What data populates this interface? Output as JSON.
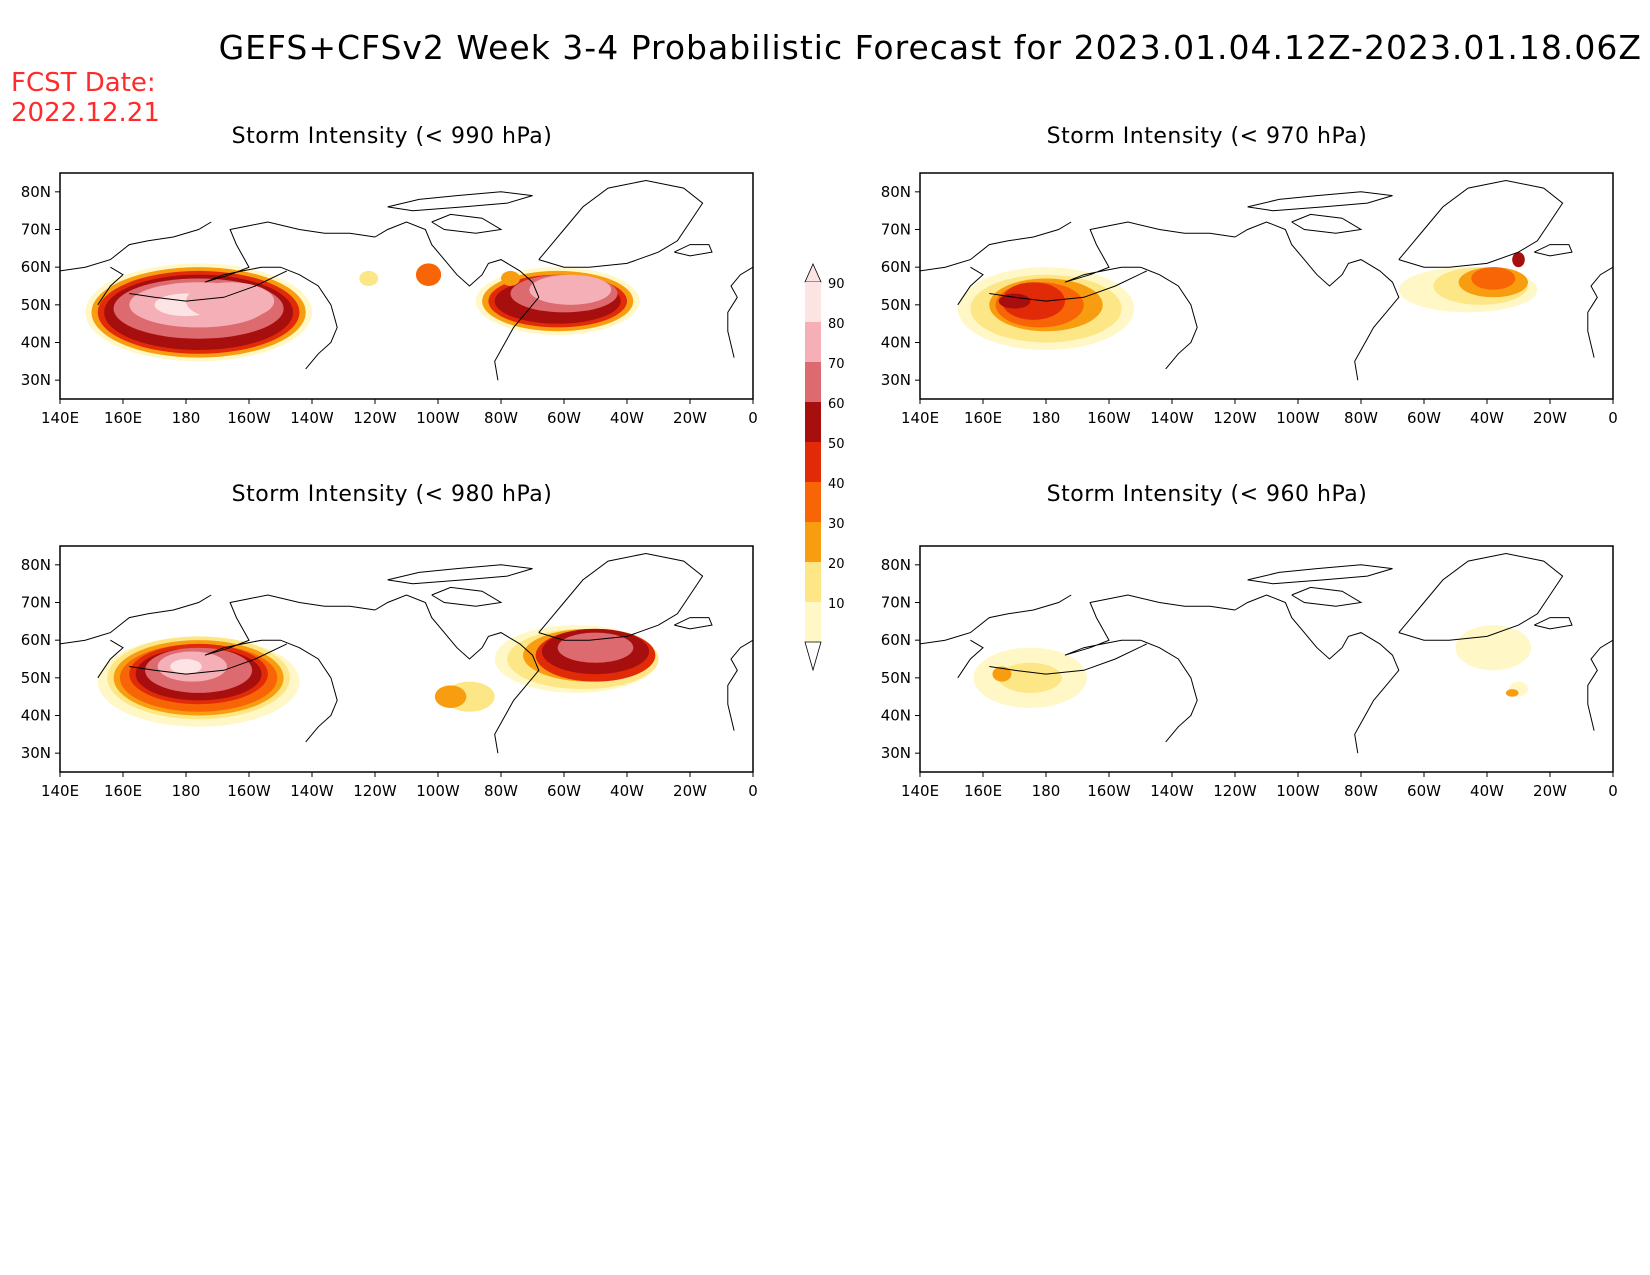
{
  "header": {
    "title": "GEFS+CFSv2 Week 3-4 Probabilistic Forecast for 2023.01.04.12Z-2023.01.18.06Z",
    "fcst_label": "FCST Date:",
    "fcst_date": "2022.12.21"
  },
  "panels": [
    {
      "id": "p990",
      "title": "Storm Intensity (< 990 hPa)"
    },
    {
      "id": "p970",
      "title": "Storm Intensity (< 970 hPa)"
    },
    {
      "id": "p980",
      "title": "Storm Intensity (< 980 hPa)"
    },
    {
      "id": "p960",
      "title": "Storm Intensity (< 960 hPa)"
    }
  ],
  "axes": {
    "lon_labels": [
      "140E",
      "160E",
      "180",
      "160W",
      "140W",
      "120W",
      "100W",
      "80W",
      "60W",
      "40W",
      "20W",
      "0"
    ],
    "lat_labels": [
      "80N",
      "70N",
      "60N",
      "50N",
      "40N",
      "30N"
    ]
  },
  "colorbar": {
    "levels": [
      "90",
      "80",
      "70",
      "60",
      "50",
      "40",
      "30",
      "20",
      "10"
    ],
    "colors": [
      "#fce4e4",
      "#f4b0b6",
      "#dd6a6e",
      "#a70e0e",
      "#e02a08",
      "#f86506",
      "#f99d10",
      "#fde685",
      "#fff8c6"
    ]
  },
  "map_data": {
    "projection": "lat-lon",
    "lon_range": [
      "140E",
      "0"
    ],
    "lat_range": [
      "25N",
      "85N"
    ],
    "probability_levels": [
      10,
      20,
      30,
      40,
      50,
      60,
      70,
      80,
      90
    ]
  }
}
